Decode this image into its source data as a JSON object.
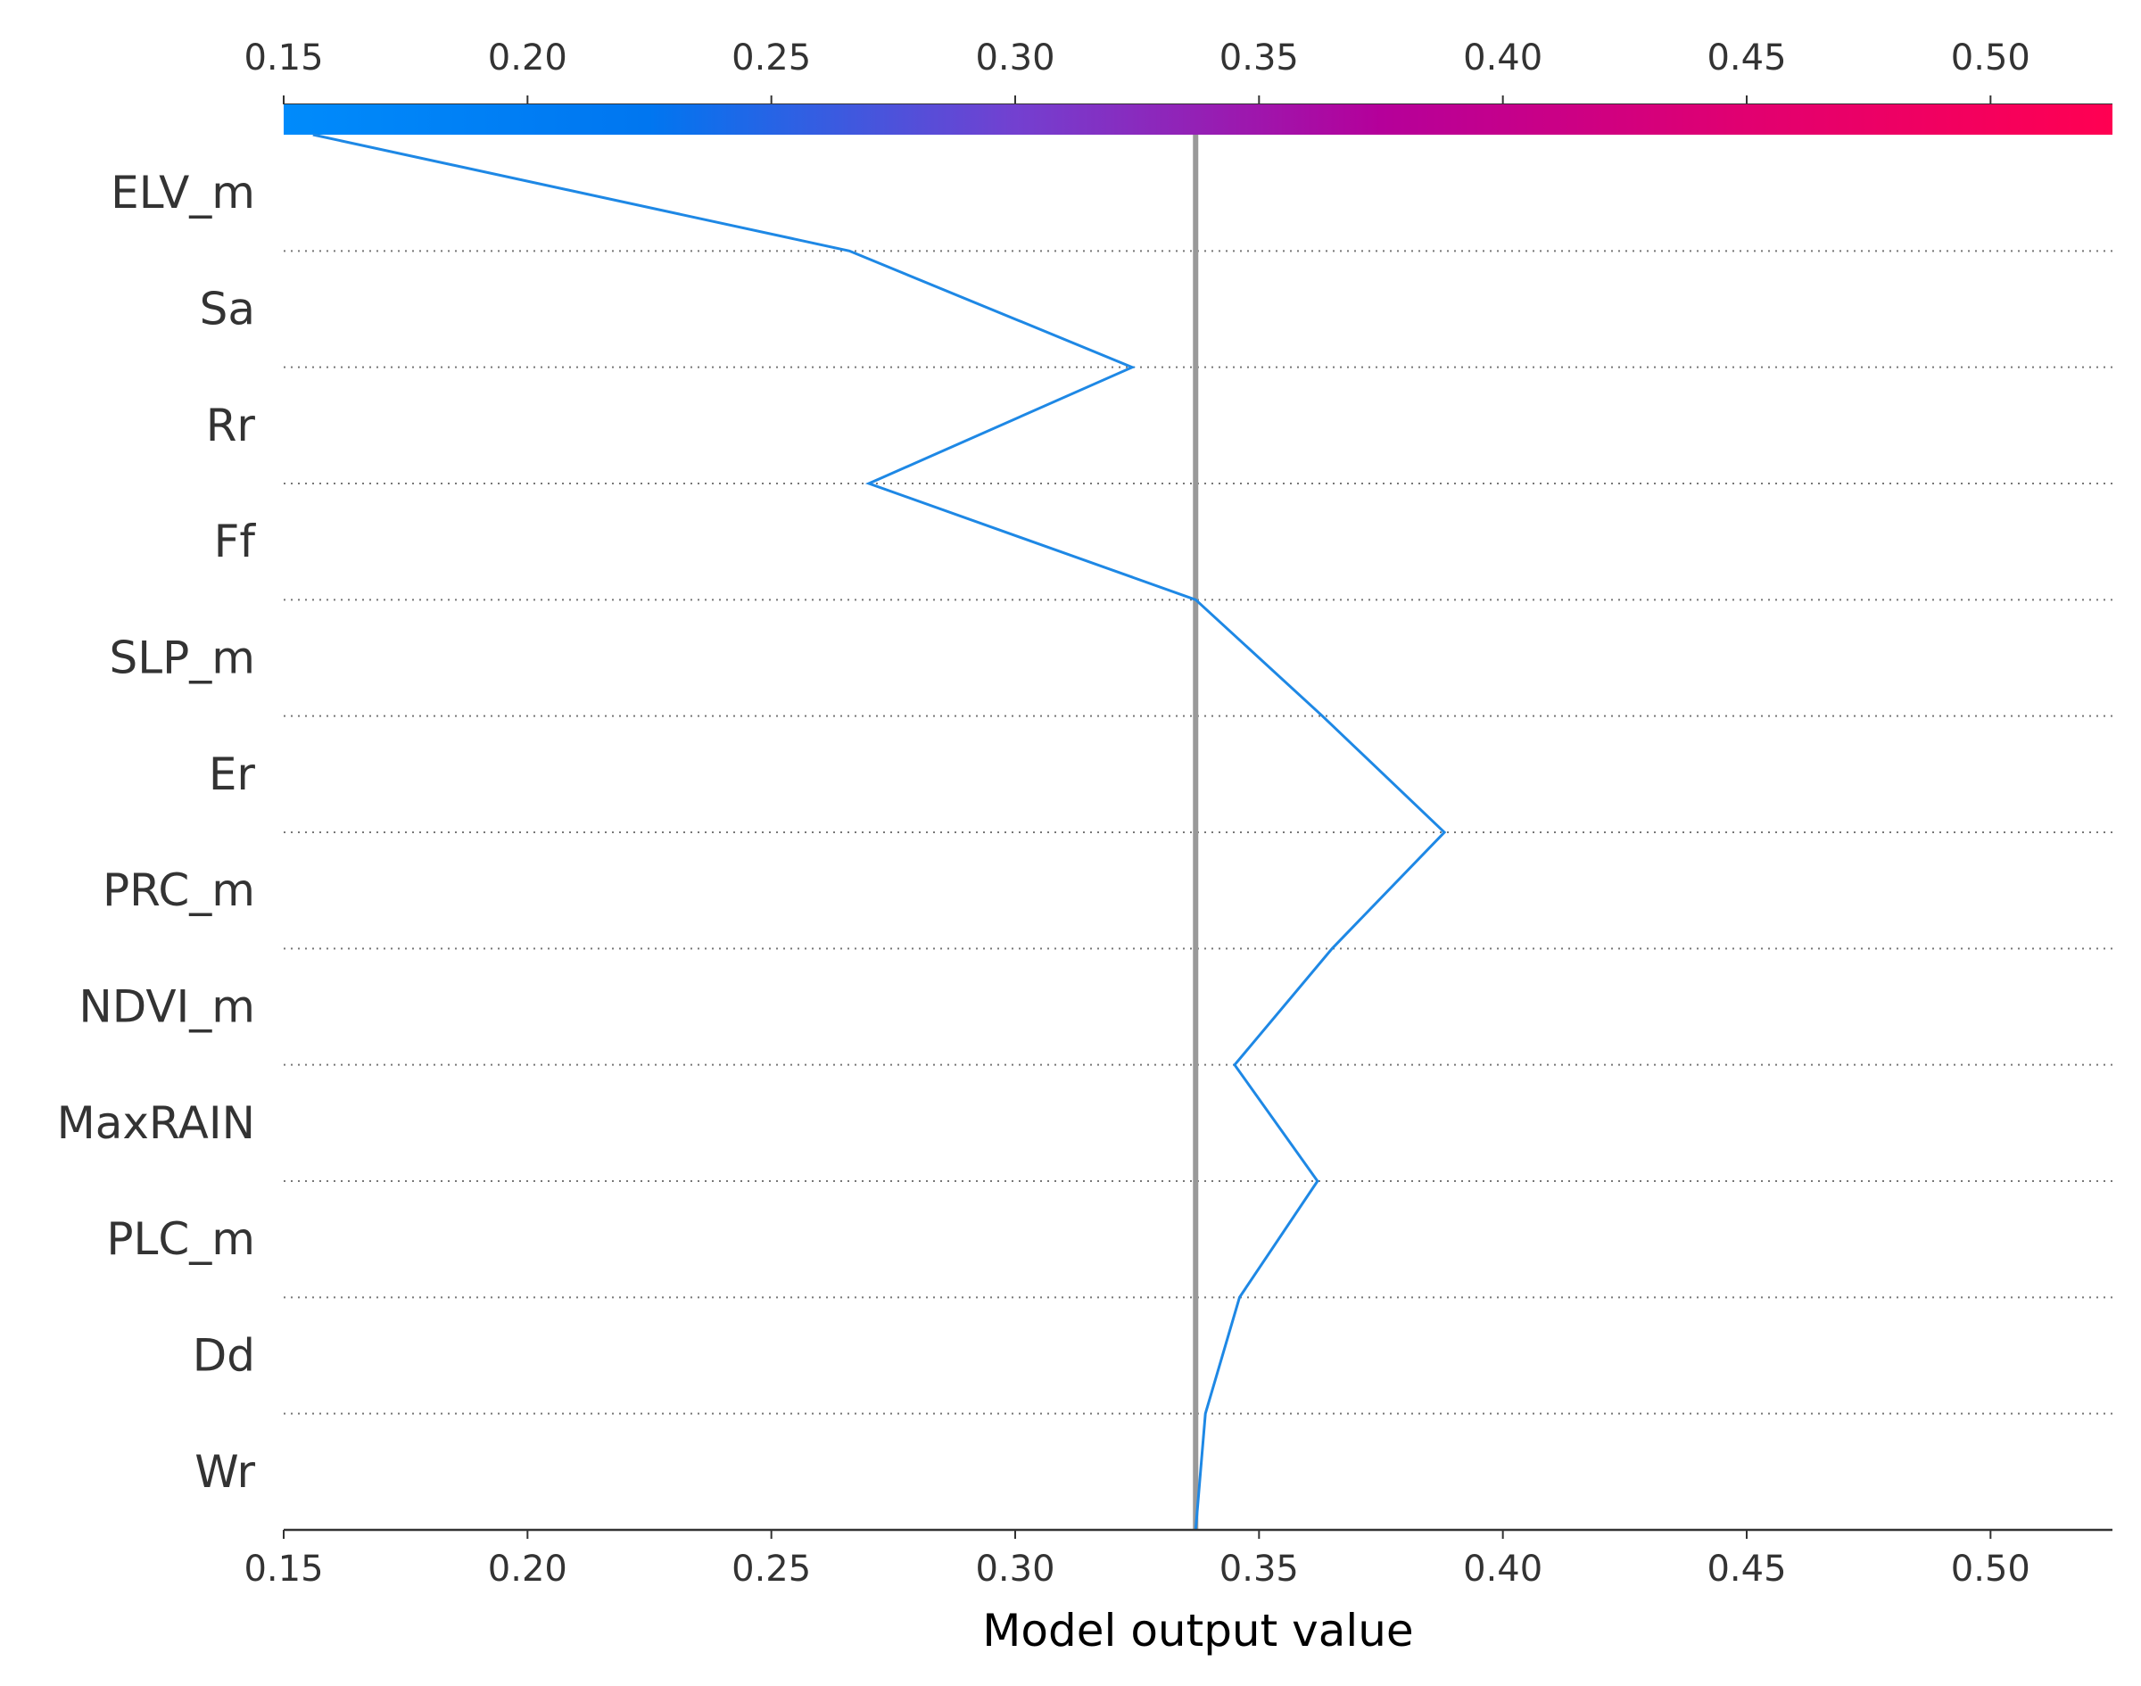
{
  "chart_data": {
    "type": "line",
    "title": "",
    "subtitle": "",
    "xlabel": "Model output value",
    "ylabel": "",
    "xlim": [
      0.15,
      0.525
    ],
    "x_ticks": [
      "0.15",
      "0.20",
      "0.25",
      "0.30",
      "0.35",
      "0.40",
      "0.45",
      "0.50"
    ],
    "x_tick_values": [
      0.15,
      0.2,
      0.25,
      0.3,
      0.35,
      0.4,
      0.45,
      0.5
    ],
    "features": [
      "ELV_m",
      "Sa",
      "Rr",
      "Ff",
      "SLP_m",
      "Er",
      "PRC_m",
      "NDVI_m",
      "MaxRAIN",
      "PLC_m",
      "Dd",
      "Wr"
    ],
    "base_value": 0.337,
    "series": [
      {
        "name": "decision path",
        "color": "#1E88E5",
        "values_bottom_to_top": [
          0.337,
          0.339,
          0.346,
          0.362,
          0.345,
          0.365,
          0.388,
          0.363,
          0.337,
          0.27,
          0.324,
          0.266,
          0.156
        ]
      }
    ],
    "colorbar": {
      "stops": [
        "#008bfb",
        "#0076f0",
        "#7340d0",
        "#b5009a",
        "#e10070",
        "#ff0052"
      ]
    },
    "reference_line_color": "#999999",
    "grid": "dotted horizontal separators"
  }
}
